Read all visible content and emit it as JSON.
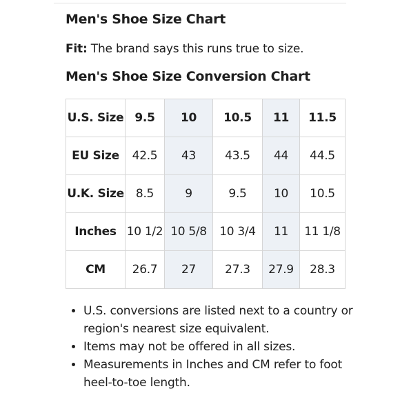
{
  "page": {
    "title": "Men's Shoe Size Chart",
    "fit_label": "Fit:",
    "fit_text": " The brand says this runs true to size.",
    "conversion_title": "Men's Shoe Size Conversion Chart"
  },
  "table": {
    "rows": [
      {
        "label": "U.S.  Size",
        "values": [
          "9.5",
          "10",
          "10.5",
          "11",
          "11.5"
        ]
      },
      {
        "label": "EU Size",
        "values": [
          "42.5",
          "43",
          "43.5",
          "44",
          "44.5"
        ]
      },
      {
        "label": "U.K. Size",
        "values": [
          "8.5",
          "9",
          "9.5",
          "10",
          "10.5"
        ]
      },
      {
        "label": "Inches",
        "values": [
          "10 1/2",
          "10 5/8",
          "10 3/4",
          "11",
          "11 1/8"
        ]
      },
      {
        "label": "CM",
        "values": [
          "26.7",
          "27",
          "27.3",
          "27.9",
          "28.3"
        ]
      }
    ],
    "shade_color": "#edf1f6"
  },
  "notes": [
    "U.S. conversions are listed next to a country or region's nearest size equivalent.",
    "Items may not be offered in all sizes.",
    "Measurements in Inches and CM refer to foot heel-to-toe length."
  ]
}
